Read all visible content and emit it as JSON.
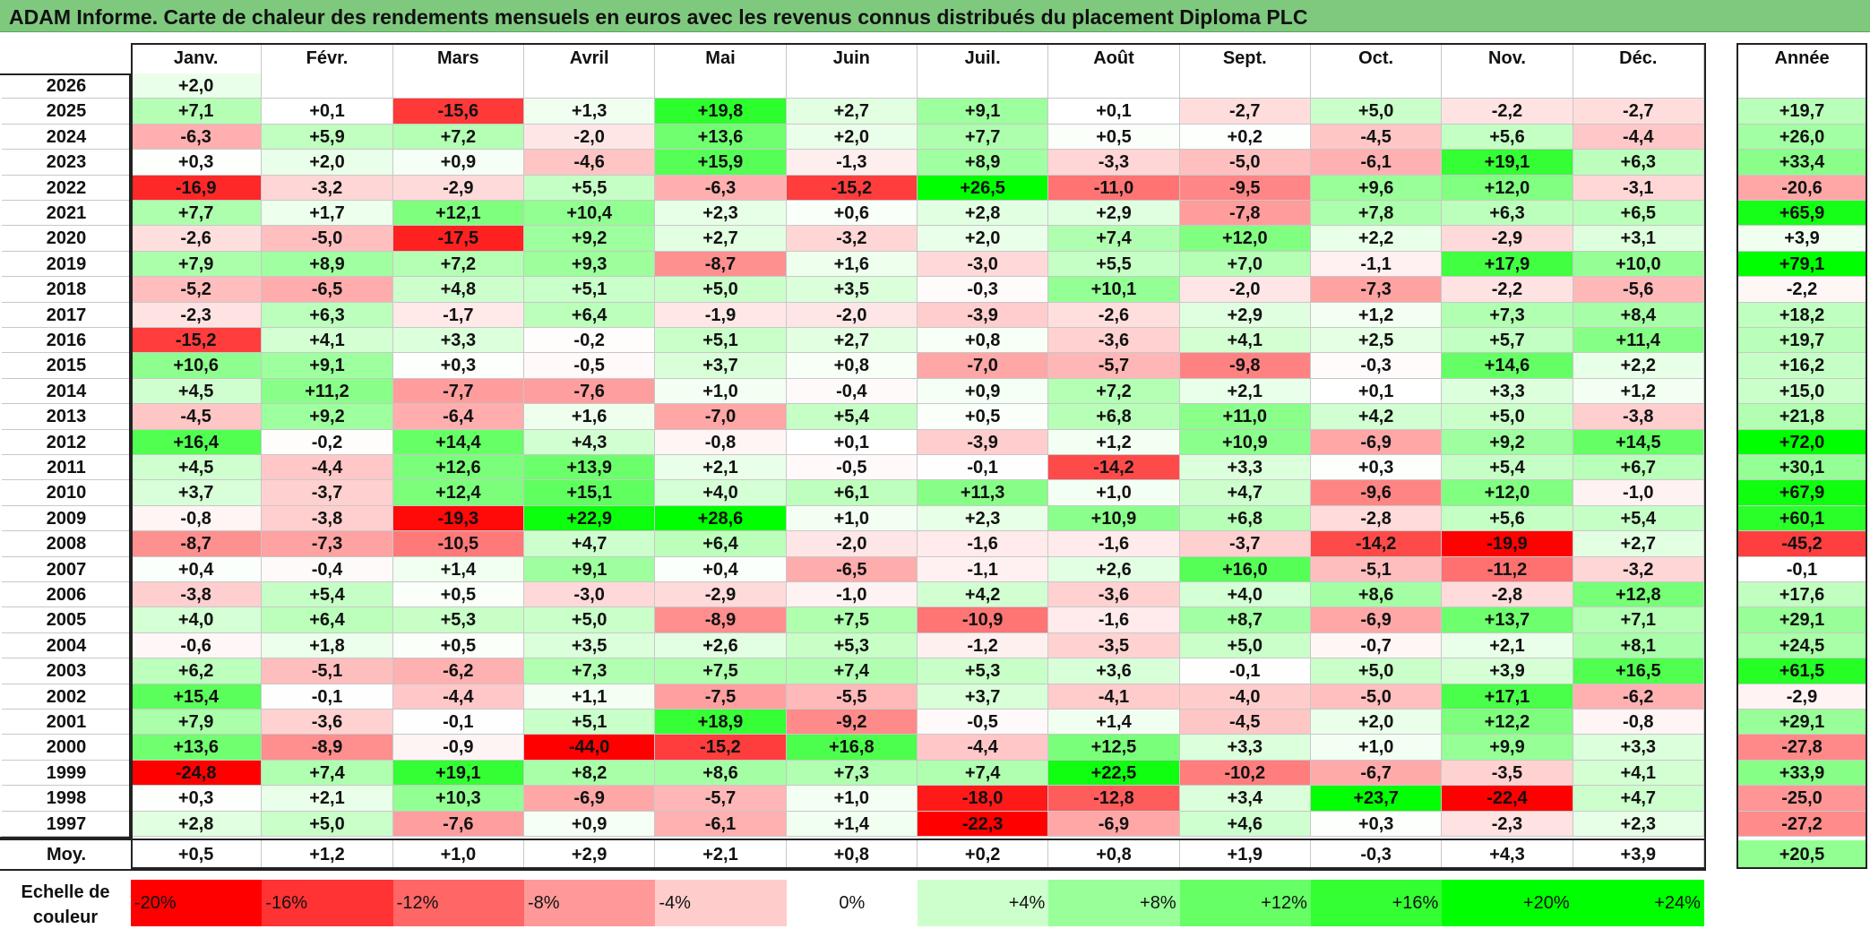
{
  "title": "ADAM Informe. Carte de chaleur des rendements mensuels en euros avec les revenus connus distribués du placement Diploma PLC",
  "chart_data": {
    "type": "heatmap",
    "months": [
      "Janv.",
      "Févr.",
      "Mars",
      "Avril",
      "Mai",
      "Juin",
      "Juil.",
      "Août",
      "Sept.",
      "Oct.",
      "Nov.",
      "Déc."
    ],
    "year_header": "Année",
    "rows": [
      {
        "year": "2026",
        "values": [
          "+2,0",
          null,
          null,
          null,
          null,
          null,
          null,
          null,
          null,
          null,
          null,
          null
        ],
        "annual": null
      },
      {
        "year": "2025",
        "values": [
          "+7,1",
          "+0,1",
          "-15,6",
          "+1,3",
          "+19,8",
          "+2,7",
          "+9,1",
          "+0,1",
          "-2,7",
          "+5,0",
          "-2,2",
          "-2,7"
        ],
        "annual": "+19,7"
      },
      {
        "year": "2024",
        "values": [
          "-6,3",
          "+5,9",
          "+7,2",
          "-2,0",
          "+13,6",
          "+2,0",
          "+7,7",
          "+0,5",
          "+0,2",
          "-4,5",
          "+5,6",
          "-4,4"
        ],
        "annual": "+26,0"
      },
      {
        "year": "2023",
        "values": [
          "+0,3",
          "+2,0",
          "+0,9",
          "-4,6",
          "+15,9",
          "-1,3",
          "+8,9",
          "-3,3",
          "-5,0",
          "-6,1",
          "+19,1",
          "+6,3"
        ],
        "annual": "+33,4"
      },
      {
        "year": "2022",
        "values": [
          "-16,9",
          "-3,2",
          "-2,9",
          "+5,5",
          "-6,3",
          "-15,2",
          "+26,5",
          "-11,0",
          "-9,5",
          "+9,6",
          "+12,0",
          "-3,1"
        ],
        "annual": "-20,6"
      },
      {
        "year": "2021",
        "values": [
          "+7,7",
          "+1,7",
          "+12,1",
          "+10,4",
          "+2,3",
          "+0,6",
          "+2,8",
          "+2,9",
          "-7,8",
          "+7,8",
          "+6,3",
          "+6,5"
        ],
        "annual": "+65,9"
      },
      {
        "year": "2020",
        "values": [
          "-2,6",
          "-5,0",
          "-17,5",
          "+9,2",
          "+2,7",
          "-3,2",
          "+2,0",
          "+7,4",
          "+12,0",
          "+2,2",
          "-2,9",
          "+3,1"
        ],
        "annual": "+3,9"
      },
      {
        "year": "2019",
        "values": [
          "+7,9",
          "+8,9",
          "+7,2",
          "+9,3",
          "-8,7",
          "+1,6",
          "-3,0",
          "+5,5",
          "+7,0",
          "-1,1",
          "+17,9",
          "+10,0"
        ],
        "annual": "+79,1"
      },
      {
        "year": "2018",
        "values": [
          "-5,2",
          "-6,5",
          "+4,8",
          "+5,1",
          "+5,0",
          "+3,5",
          "-0,3",
          "+10,1",
          "-2,0",
          "-7,3",
          "-2,2",
          "-5,6"
        ],
        "annual": "-2,2"
      },
      {
        "year": "2017",
        "values": [
          "-2,3",
          "+6,3",
          "-1,7",
          "+6,4",
          "-1,9",
          "-2,0",
          "-3,9",
          "-2,6",
          "+2,9",
          "+1,2",
          "+7,3",
          "+8,4"
        ],
        "annual": "+18,2"
      },
      {
        "year": "2016",
        "values": [
          "-15,2",
          "+4,1",
          "+3,3",
          "-0,2",
          "+5,1",
          "+2,7",
          "+0,8",
          "-3,6",
          "+4,1",
          "+2,5",
          "+5,7",
          "+11,4"
        ],
        "annual": "+19,7"
      },
      {
        "year": "2015",
        "values": [
          "+10,6",
          "+9,1",
          "+0,3",
          "-0,5",
          "+3,7",
          "+0,8",
          "-7,0",
          "-5,7",
          "-9,8",
          "-0,3",
          "+14,6",
          "+2,2"
        ],
        "annual": "+16,2"
      },
      {
        "year": "2014",
        "values": [
          "+4,5",
          "+11,2",
          "-7,7",
          "-7,6",
          "+1,0",
          "-0,4",
          "+0,9",
          "+7,2",
          "+2,1",
          "+0,1",
          "+3,3",
          "+1,2"
        ],
        "annual": "+15,0"
      },
      {
        "year": "2013",
        "values": [
          "-4,5",
          "+9,2",
          "-6,4",
          "+1,6",
          "-7,0",
          "+5,4",
          "+0,5",
          "+6,8",
          "+11,0",
          "+4,2",
          "+5,0",
          "-3,8"
        ],
        "annual": "+21,8"
      },
      {
        "year": "2012",
        "values": [
          "+16,4",
          "-0,2",
          "+14,4",
          "+4,3",
          "-0,8",
          "+0,1",
          "-3,9",
          "+1,2",
          "+10,9",
          "-6,9",
          "+9,2",
          "+14,5"
        ],
        "annual": "+72,0"
      },
      {
        "year": "2011",
        "values": [
          "+4,5",
          "-4,4",
          "+12,6",
          "+13,9",
          "+2,1",
          "-0,5",
          "-0,1",
          "-14,2",
          "+3,3",
          "+0,3",
          "+5,4",
          "+6,7"
        ],
        "annual": "+30,1"
      },
      {
        "year": "2010",
        "values": [
          "+3,7",
          "-3,7",
          "+12,4",
          "+15,1",
          "+4,0",
          "+6,1",
          "+11,3",
          "+1,0",
          "+4,7",
          "-9,6",
          "+12,0",
          "-1,0"
        ],
        "annual": "+67,9"
      },
      {
        "year": "2009",
        "values": [
          "-0,8",
          "-3,8",
          "-19,3",
          "+22,9",
          "+28,6",
          "+1,0",
          "+2,3",
          "+10,9",
          "+6,8",
          "-2,8",
          "+5,6",
          "+5,4"
        ],
        "annual": "+60,1"
      },
      {
        "year": "2008",
        "values": [
          "-8,7",
          "-7,3",
          "-10,5",
          "+4,7",
          "+6,4",
          "-2,0",
          "-1,6",
          "-1,6",
          "-3,7",
          "-14,2",
          "-19,9",
          "+2,7"
        ],
        "annual": "-45,2"
      },
      {
        "year": "2007",
        "values": [
          "+0,4",
          "-0,4",
          "+1,4",
          "+9,1",
          "+0,4",
          "-6,5",
          "-1,1",
          "+2,6",
          "+16,0",
          "-5,1",
          "-11,2",
          "-3,2"
        ],
        "annual": "-0,1"
      },
      {
        "year": "2006",
        "values": [
          "-3,8",
          "+5,4",
          "+0,5",
          "-3,0",
          "-2,9",
          "-1,0",
          "+4,2",
          "-3,6",
          "+4,0",
          "+8,6",
          "-2,8",
          "+12,8"
        ],
        "annual": "+17,6"
      },
      {
        "year": "2005",
        "values": [
          "+4,0",
          "+6,4",
          "+5,3",
          "+5,0",
          "-8,9",
          "+7,5",
          "-10,9",
          "-1,6",
          "+8,7",
          "-6,9",
          "+13,7",
          "+7,1"
        ],
        "annual": "+29,1"
      },
      {
        "year": "2004",
        "values": [
          "-0,6",
          "+1,8",
          "+0,5",
          "+3,5",
          "+2,6",
          "+5,3",
          "-1,2",
          "-3,5",
          "+5,0",
          "-0,7",
          "+2,1",
          "+8,1"
        ],
        "annual": "+24,5"
      },
      {
        "year": "2003",
        "values": [
          "+6,2",
          "-5,1",
          "-6,2",
          "+7,3",
          "+7,5",
          "+7,4",
          "+5,3",
          "+3,6",
          "-0,1",
          "+5,0",
          "+3,9",
          "+16,5"
        ],
        "annual": "+61,5"
      },
      {
        "year": "2002",
        "values": [
          "+15,4",
          "-0,1",
          "-4,4",
          "+1,1",
          "-7,5",
          "-5,5",
          "+3,7",
          "-4,1",
          "-4,0",
          "-5,0",
          "+17,1",
          "-6,2"
        ],
        "annual": "-2,9"
      },
      {
        "year": "2001",
        "values": [
          "+7,9",
          "-3,6",
          "-0,1",
          "+5,1",
          "+18,9",
          "-9,2",
          "-0,5",
          "+1,4",
          "-4,5",
          "+2,0",
          "+12,2",
          "-0,8"
        ],
        "annual": "+29,1"
      },
      {
        "year": "2000",
        "values": [
          "+13,6",
          "-8,9",
          "-0,9",
          "-44,0",
          "-15,2",
          "+16,8",
          "-4,4",
          "+12,5",
          "+3,3",
          "+1,0",
          "+9,9",
          "+3,3"
        ],
        "annual": "-27,8"
      },
      {
        "year": "1999",
        "values": [
          "-24,8",
          "+7,4",
          "+19,1",
          "+8,2",
          "+8,6",
          "+7,3",
          "+7,4",
          "+22,5",
          "-10,2",
          "-6,7",
          "-3,5",
          "+4,1"
        ],
        "annual": "+33,9"
      },
      {
        "year": "1998",
        "values": [
          "+0,3",
          "+2,1",
          "+10,3",
          "-6,9",
          "-5,7",
          "+1,0",
          "-18,0",
          "-12,8",
          "+3,4",
          "+23,7",
          "-22,4",
          "+4,7"
        ],
        "annual": "-25,0"
      },
      {
        "year": "1997",
        "values": [
          "+2,8",
          "+5,0",
          "-7,6",
          "+0,9",
          "-6,1",
          "+1,4",
          "-22,3",
          "-6,9",
          "+4,6",
          "+0,3",
          "-2,3",
          "+2,3"
        ],
        "annual": "-27,2"
      }
    ],
    "average": {
      "label": "Moy.",
      "values": [
        "+0,5",
        "+1,2",
        "+1,0",
        "+2,9",
        "+2,1",
        "+0,8",
        "+0,2",
        "+0,8",
        "+1,9",
        "-0,3",
        "+4,3",
        "+3,9"
      ],
      "annual": "+20,5"
    },
    "color_scale": {
      "label_line1": "Echelle de",
      "label_line2": "couleur",
      "stops": [
        "-20%",
        "-16%",
        "-12%",
        "-8%",
        "-4%",
        "0%",
        "+4%",
        "+8%",
        "+12%",
        "+16%",
        "+20%",
        "+24%"
      ],
      "stop_values": [
        -20,
        -16,
        -12,
        -8,
        -4,
        0,
        4,
        8,
        12,
        16,
        20,
        24
      ],
      "colors": [
        "#ff0000",
        "#ff3333",
        "#ff6666",
        "#ff9999",
        "#ffcccc",
        "#ffffff",
        "#ccffcc",
        "#99ff99",
        "#66ff66",
        "#33ff33",
        "#00ff00",
        "#00ff00"
      ]
    }
  }
}
